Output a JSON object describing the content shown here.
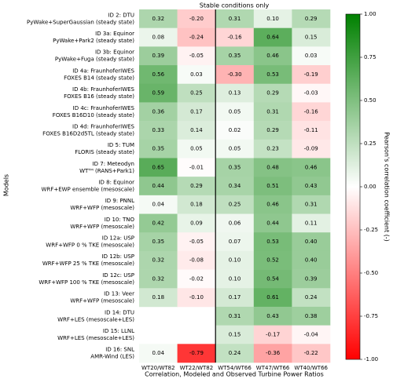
{
  "chart_data": {
    "type": "heatmap",
    "title": "Stable conditions only",
    "x_label": "Correlation, Modeled and Observed Turbine Power Ratios",
    "y_label": "Models",
    "colorbar_label": "Pearson's correlation coefficient (-)",
    "x_categories": [
      "WT20/WT82",
      "WT22/WT82",
      "WT54/WT66",
      "WT47/WT66",
      "WT40/WT66"
    ],
    "y_categories": [
      [
        "ID 2: DTU",
        "PyWake+SuperGaussian (steady state)"
      ],
      [
        "ID 3a: Equinor",
        "PyWake+Park2 (steady state)"
      ],
      [
        "ID 3b: Equinor",
        "PyWake+Fuga (steady state)"
      ],
      [
        "ID 4a: FraunhoferIWES",
        "FOXES B14 (steady state)"
      ],
      [
        "ID 4b: FraunhoferIWES",
        "FOXES B16 (steady state)"
      ],
      [
        "ID 4c: FraunhoferIWES",
        "FOXES B16D10 (steady state)"
      ],
      [
        "ID 4d: FraunhoferIWES",
        "FOXES B16D2d5TL (steady state)"
      ],
      [
        "ID 5: TUM",
        "FLORIS (steady state)"
      ],
      [
        "ID 7: Meteodyn",
        "WTᵀᴹ (RANS+Park1)"
      ],
      [
        "ID 8: Equinor",
        "WRF+EWP ensemble (mesoscale)"
      ],
      [
        "ID 9: PNNL",
        "WRF+WFP (mesoscale)"
      ],
      [
        "ID 10: TNO",
        "WRF+WFP (mesoscale)"
      ],
      [
        "ID 12a: USP",
        "WRF+WFP 0 % TKE (mesoscale)"
      ],
      [
        "ID 12b: USP",
        "WRF+WFP 25 % TKE (mesoscale)"
      ],
      [
        "ID 12c: USP",
        "WRF+WFP 100 % TKE (mesoscale)"
      ],
      [
        "ID 13: Veer",
        "WRF+WFP (mesoscale)"
      ],
      [
        "ID 14: DTU",
        "WRF+LES (mesoscale+LES)"
      ],
      [
        "ID 15: LLNL",
        "WRF+LES (mesoscale+LES)"
      ],
      [
        "ID 16: SNL",
        "AMR-Wind (LES)"
      ]
    ],
    "values": [
      [
        0.32,
        -0.2,
        0.31,
        0.1,
        0.29
      ],
      [
        0.08,
        -0.24,
        -0.16,
        0.64,
        0.15
      ],
      [
        0.39,
        -0.05,
        0.35,
        0.46,
        0.03
      ],
      [
        0.56,
        0.03,
        -0.3,
        0.53,
        -0.19
      ],
      [
        0.59,
        0.25,
        0.13,
        0.29,
        -0.03
      ],
      [
        0.36,
        0.17,
        0.05,
        0.31,
        -0.16
      ],
      [
        0.33,
        0.14,
        0.02,
        0.29,
        -0.11
      ],
      [
        0.35,
        0.05,
        0.05,
        0.23,
        -0.09
      ],
      [
        0.65,
        -0.01,
        0.35,
        0.48,
        0.46
      ],
      [
        0.44,
        0.29,
        0.34,
        0.51,
        0.43
      ],
      [
        0.04,
        0.18,
        0.25,
        0.46,
        0.31
      ],
      [
        0.42,
        0.09,
        0.06,
        0.44,
        0.11
      ],
      [
        0.35,
        -0.05,
        0.07,
        0.53,
        0.4
      ],
      [
        0.32,
        -0.08,
        0.1,
        0.52,
        0.4
      ],
      [
        0.32,
        -0.02,
        0.1,
        0.54,
        0.39
      ],
      [
        0.18,
        -0.1,
        0.17,
        0.61,
        0.24
      ],
      [
        null,
        null,
        0.31,
        0.43,
        0.38
      ],
      [
        null,
        null,
        0.15,
        -0.17,
        -0.04
      ],
      [
        0.04,
        -0.79,
        0.24,
        -0.36,
        -0.22
      ]
    ],
    "value_labels": [
      [
        "0.32",
        "-0.20",
        "0.31",
        "0.10",
        "0.29"
      ],
      [
        "0.08",
        "-0.24",
        "-0.16",
        "0.64",
        "0.15"
      ],
      [
        "0.39",
        "-0.05",
        "0.35",
        "0.46",
        "0.03"
      ],
      [
        "0.56",
        "0.03",
        "-0.30",
        "0.53",
        "-0.19"
      ],
      [
        "0.59",
        "0.25",
        "0.13",
        "0.29",
        "-0.03"
      ],
      [
        "0.36",
        "0.17",
        "0.05",
        "0.31",
        "-0.16"
      ],
      [
        "0.33",
        "0.14",
        "0.02",
        "0.29",
        "-0.11"
      ],
      [
        "0.35",
        "0.05",
        "0.05",
        "0.23",
        "-0.09"
      ],
      [
        "0.65",
        "-0.01",
        "0.35",
        "0.48",
        "0.46"
      ],
      [
        "0.44",
        "0.29",
        "0.34",
        "0.51",
        "0.43"
      ],
      [
        "0.04",
        "0.18",
        "0.25",
        "0.46",
        "0.31"
      ],
      [
        "0.42",
        "0.09",
        "0.06",
        "0.44",
        "0.11"
      ],
      [
        "0.35",
        "-0.05",
        "0.07",
        "0.53",
        "0.40"
      ],
      [
        "0.32",
        "-0.08",
        "0.10",
        "0.52",
        "0.40"
      ],
      [
        "0.32",
        "-0.02",
        "0.10",
        "0.54",
        "0.39"
      ],
      [
        "0.18",
        "-0.10",
        "0.17",
        "0.61",
        "0.24"
      ],
      [
        null,
        null,
        "0.31",
        "0.43",
        "0.38"
      ],
      [
        null,
        null,
        "0.15",
        "-0.17",
        "-0.04"
      ],
      [
        "0.04",
        "-0.79",
        "0.24",
        "-0.36",
        "-0.22"
      ]
    ],
    "colormap": [
      "#ff0000",
      "#ffffff",
      "#008000"
    ],
    "clim": [
      -1,
      1
    ],
    "cticks": [
      {
        "value": 1,
        "label": "1.00"
      },
      {
        "value": 0.75,
        "label": "0.75"
      },
      {
        "value": 0.5,
        "label": "0.50"
      },
      {
        "value": 0.25,
        "label": "0.25"
      },
      {
        "value": 0,
        "label": "0.00"
      },
      {
        "value": -0.25,
        "label": "-0.25"
      },
      {
        "value": -0.5,
        "label": "-0.50"
      },
      {
        "value": -0.75,
        "label": "-0.75"
      },
      {
        "value": -1,
        "label": "-1.00"
      }
    ]
  }
}
